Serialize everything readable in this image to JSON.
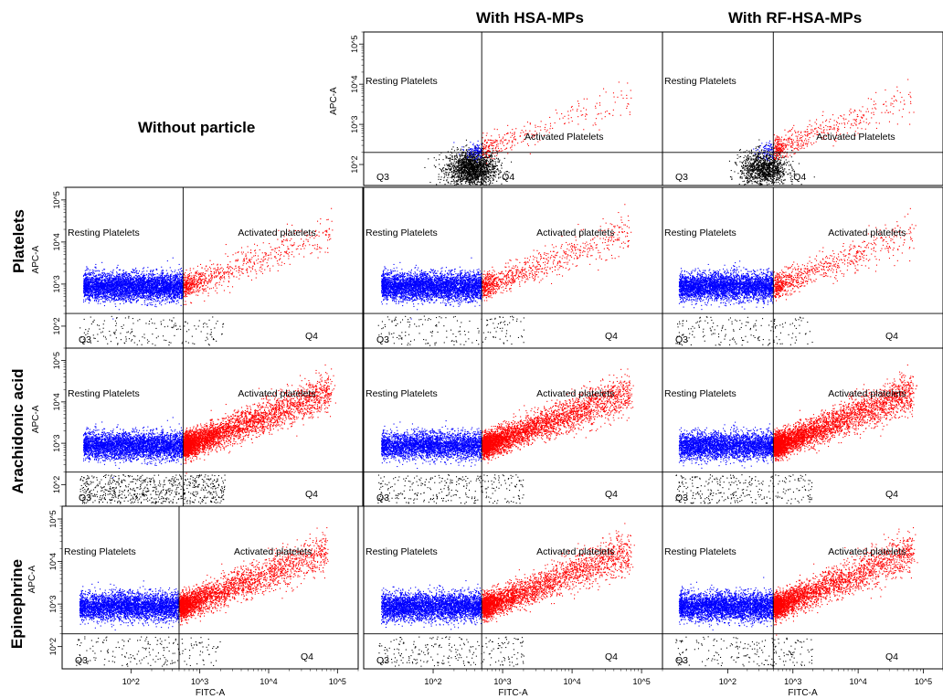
{
  "headers": {
    "col_hsa": "With HSA-MPs",
    "col_rf": "With RF-HSA-MPs",
    "col_none": "Without particle"
  },
  "row_labels": [
    "Platelets",
    "Arachidonic acid",
    "Epinephrine"
  ],
  "colors": {
    "resting": "#0000ff",
    "activated": "#ff0000",
    "debris": "#000000"
  },
  "chart_data": {
    "type": "scatter",
    "xlabel": "FITC-A",
    "ylabel": "APC-A",
    "log_scale": true,
    "xlim": [
      10,
      200000
    ],
    "ylim": [
      30,
      200000
    ],
    "x_ticks": [
      "10^2",
      "10^3",
      "10^4",
      "10^5"
    ],
    "y_ticks": [
      "10^2",
      "10^3",
      "10^4",
      "10^5"
    ],
    "gate_x": 500,
    "gate_y": 200,
    "series": [
      {
        "name": "Resting Platelets"
      },
      {
        "name": "Activated platelets"
      }
    ],
    "quadrant_labels": [
      "Q3",
      "Q4"
    ],
    "panels": [
      {
        "id": "top-hsa",
        "resting_label": "Resting Platelets",
        "activated_label": "Activated Platelets",
        "counts": {
          "resting": 120,
          "activated": 300,
          "debris": 1800
        }
      },
      {
        "id": "top-rf",
        "resting_label": "Resting Platelets",
        "activated_label": "Activated Platelets",
        "counts": {
          "resting": 80,
          "activated": 500,
          "debris": 1200
        }
      },
      {
        "id": "plt-none",
        "resting_label": "Resting Platelets",
        "activated_label": "Activated platelets",
        "counts": {
          "resting": 4500,
          "activated": 800,
          "debris": 180
        }
      },
      {
        "id": "plt-hsa",
        "resting_label": "Resting Platelets",
        "activated_label": "Activated platelets",
        "counts": {
          "resting": 4500,
          "activated": 900,
          "debris": 180
        }
      },
      {
        "id": "plt-rf",
        "resting_label": "Resting Platelets",
        "activated_label": "Activated platelets",
        "counts": {
          "resting": 4000,
          "activated": 800,
          "debris": 180
        }
      },
      {
        "id": "aa-none",
        "resting_label": "Resting Platelets",
        "activated_label": "Activated platelets",
        "counts": {
          "resting": 4000,
          "activated": 4000,
          "debris": 700
        }
      },
      {
        "id": "aa-hsa",
        "resting_label": "Resting Platelets",
        "activated_label": "Activated platelets",
        "counts": {
          "resting": 3500,
          "activated": 4000,
          "debris": 300
        }
      },
      {
        "id": "aa-rf",
        "resting_label": "Resting Platelets",
        "activated_label": "Activated platelets",
        "counts": {
          "resting": 3500,
          "activated": 4200,
          "debris": 300
        }
      },
      {
        "id": "epi-none",
        "resting_label": "Resting Platelets",
        "activated_label": "Activated platelets",
        "counts": {
          "resting": 4000,
          "activated": 3000,
          "debris": 200
        }
      },
      {
        "id": "epi-hsa",
        "resting_label": "Resting Platelets",
        "activated_label": "Activated platelets",
        "counts": {
          "resting": 4000,
          "activated": 3200,
          "debris": 250
        }
      },
      {
        "id": "epi-rf",
        "resting_label": "Resting Platelets",
        "activated_label": "Activated platelets",
        "counts": {
          "resting": 4000,
          "activated": 3200,
          "debris": 200
        }
      }
    ]
  }
}
